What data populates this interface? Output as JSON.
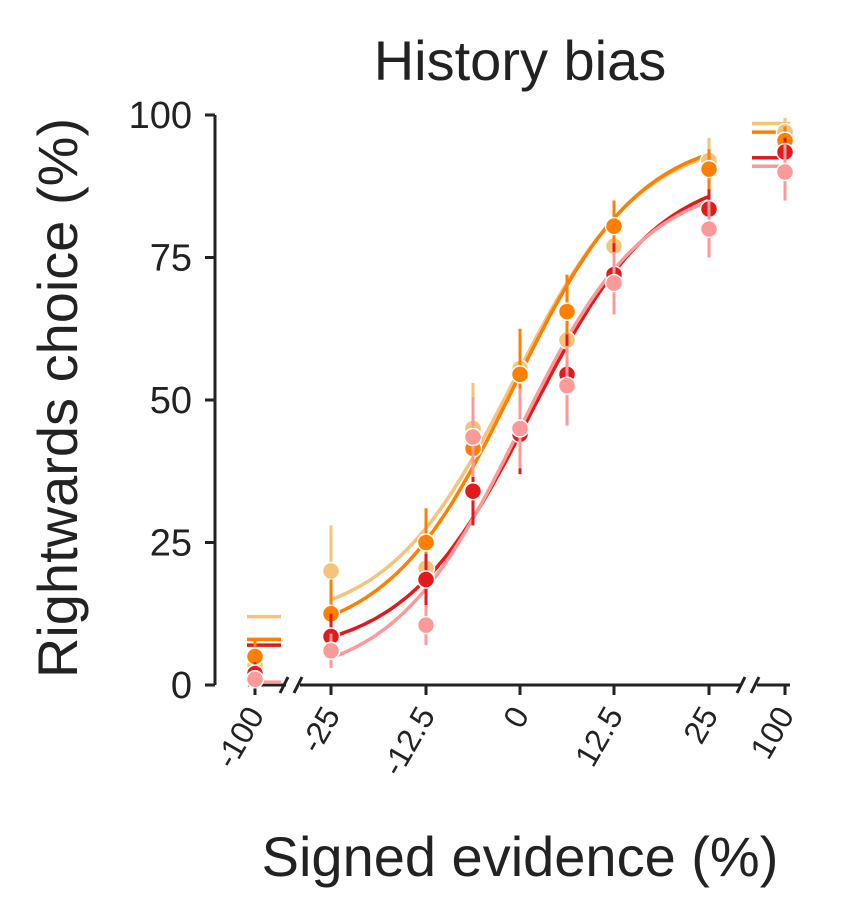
{
  "chart_data": {
    "type": "scatter",
    "title": "History bias",
    "xlabel": "Signed evidence (%)",
    "ylabel": "Rightwards choice (%)",
    "ylim": [
      0,
      100
    ],
    "yticks": [
      0,
      25,
      50,
      75,
      100
    ],
    "x_tick_labels": [
      "-100",
      "-25",
      "-12.5",
      "0",
      "12.5",
      "25",
      "100"
    ],
    "x_axis_breaks": [
      "between -100 and -25",
      "between 25 and 100"
    ],
    "grid": false,
    "legend": "none",
    "series": [
      {
        "color": "#f7c27a",
        "x": [
          -100,
          -25,
          -12.5,
          -6.25,
          0,
          6.25,
          12.5,
          25,
          100
        ],
        "y": [
          3.5,
          20,
          20.5,
          45,
          55.5,
          60.5,
          77,
          92,
          97
        ],
        "err": [
          3,
          8,
          5,
          8,
          7,
          7,
          6,
          4,
          2.5
        ],
        "fit_endpoints": [
          14.5,
          92.5
        ],
        "extreme_fit_levels": [
          12,
          98.5
        ]
      },
      {
        "color": "#ff7f00",
        "x": [
          -100,
          -25,
          -12.5,
          -6.25,
          0,
          6.25,
          12.5,
          25,
          100
        ],
        "y": [
          5,
          12.5,
          25,
          41.5,
          54.5,
          65.5,
          80.5,
          90.5,
          95.5
        ],
        "err": [
          3,
          6,
          6,
          8,
          8,
          6.5,
          4.5,
          3.5,
          2.5
        ],
        "fit_endpoints": [
          11.5,
          93
        ],
        "extreme_fit_levels": [
          8,
          97
        ]
      },
      {
        "color": "#e31a1c",
        "x": [
          -100,
          -25,
          -12.5,
          -6.25,
          0,
          6.25,
          12.5,
          25,
          100
        ],
        "y": [
          2,
          8.5,
          18.5,
          34,
          44,
          54.5,
          72,
          83.5,
          93.5
        ],
        "err": [
          2,
          4,
          4.5,
          6,
          7,
          7,
          5.5,
          3.5,
          2.5
        ],
        "fit_endpoints": [
          9,
          86.5
        ],
        "extreme_fit_levels": [
          7,
          92.5
        ]
      },
      {
        "color": "#fb9a99",
        "x": [
          -100,
          -25,
          -12.5,
          -6.25,
          0,
          6.25,
          12.5,
          25,
          100
        ],
        "y": [
          1,
          6,
          10.5,
          43.5,
          45,
          52.5,
          70.5,
          80,
          90
        ],
        "err": [
          1.5,
          3,
          3.5,
          7,
          7,
          7,
          5.5,
          5,
          5
        ],
        "fit_endpoints": [
          4.5,
          85
        ],
        "extreme_fit_levels": [
          0.5,
          91
        ]
      }
    ]
  }
}
